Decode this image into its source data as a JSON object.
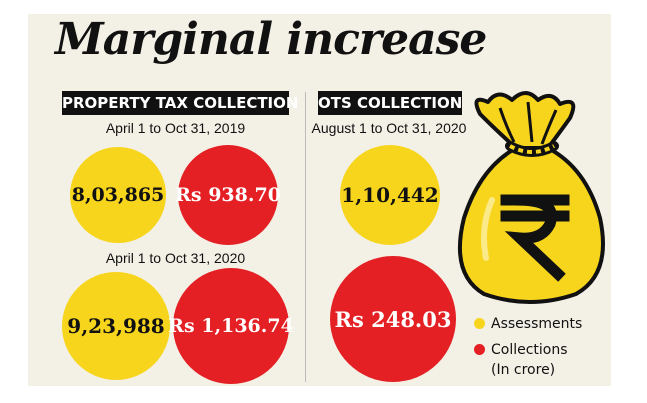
{
  "title": "Marginal increase",
  "colors": {
    "assessments": "#f7d51d",
    "collections": "#e42025"
  },
  "chart_data": [
    {
      "type": "bubble",
      "title": "PROPERTY TAX COLLECTION",
      "periods": [
        {
          "date_label": "April 1 to Oct 31, 2019",
          "assessments": "8,03,865",
          "collections": "Rs 938.70"
        },
        {
          "date_label": "April 1 to Oct 31, 2020",
          "assessments": "9,23,988",
          "collections": "Rs 1,136.74"
        }
      ]
    },
    {
      "type": "bubble",
      "title": "OTS COLLECTION",
      "periods": [
        {
          "date_label": "August 1 to Oct 31, 2020",
          "assessments": "1,10,442",
          "collections": "Rs 248.03"
        }
      ]
    }
  ],
  "legend": [
    {
      "label": "Assessments",
      "color": "#f7d51d"
    },
    {
      "label": "Collections",
      "sublabel": "(In crore)",
      "color": "#e42025"
    }
  ],
  "icon": "money-bag-rupee-icon"
}
